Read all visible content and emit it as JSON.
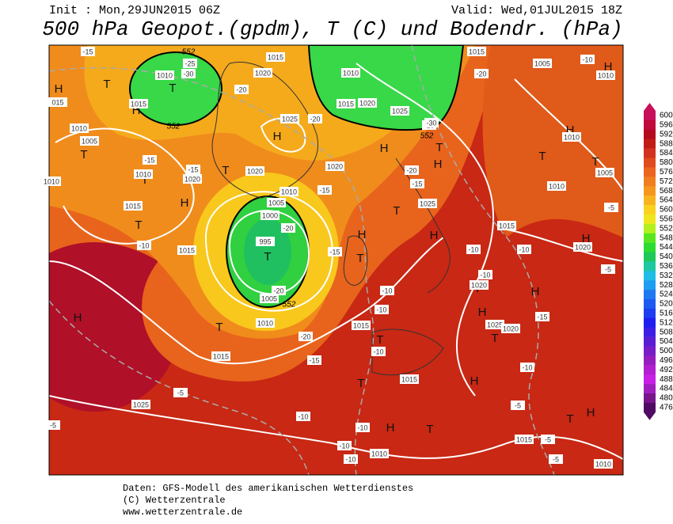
{
  "header": {
    "init": "Init : Mon,29JUN2015 06Z",
    "valid": "Valid: Wed,01JUL2015 18Z",
    "title": "500 hPa Geopot.(gpdm), T (C) und Bodendr. (hPa)"
  },
  "map": {
    "markers": [
      "T",
      "T",
      "H",
      "H",
      "H",
      "T",
      "T",
      "H",
      "H",
      "T",
      "T",
      "T",
      "H",
      "T",
      "H",
      "H",
      "H",
      "T",
      "T",
      "H",
      "T",
      "H",
      "T",
      "T",
      "H",
      "H",
      "T",
      "H",
      "T",
      "H",
      "T",
      "T",
      "H",
      "H",
      "T",
      "T"
    ],
    "isobar_labels": [
      "1010",
      "1015",
      "015",
      "1010",
      "1005",
      "1010",
      "1020",
      "1015",
      "1010",
      "1015",
      "1000",
      "995",
      "1005",
      "1010",
      "1015",
      "1025",
      "1015",
      "1010",
      "1015",
      "1020",
      "1025",
      "1020",
      "1015",
      "1025",
      "1020",
      "1020",
      "1010",
      "1005",
      "1025",
      "1015",
      "1005",
      "1010",
      "1010",
      "1005",
      "1010",
      "1020",
      "1020",
      "1025",
      "1020",
      "1015",
      "1010",
      "1015",
      "1010",
      "1015"
    ],
    "temperature_labels": [
      "-15",
      "-25",
      "-30",
      "-20",
      "-20",
      "-15",
      "-15",
      "-10",
      "-20",
      "-20",
      "-20",
      "-15",
      "-15",
      "-10",
      "-10",
      "-10",
      "-5",
      "-10",
      "-10",
      "-10",
      "-10",
      "-5",
      "-15",
      "-20",
      "-15",
      "-10",
      "-10",
      "-10",
      "-15",
      "-10",
      "-5",
      "-5",
      "-5",
      "-10",
      "-20",
      "-5",
      "-5",
      "-15",
      "-30"
    ],
    "geopotential_labels": [
      "552",
      "552",
      "552",
      "552"
    ]
  },
  "colorbar": {
    "labels": [
      "600",
      "596",
      "592",
      "588",
      "584",
      "580",
      "576",
      "572",
      "568",
      "564",
      "560",
      "556",
      "552",
      "548",
      "544",
      "540",
      "536",
      "532",
      "528",
      "524",
      "520",
      "516",
      "512",
      "508",
      "504",
      "500",
      "496",
      "492",
      "488",
      "484",
      "480",
      "476"
    ],
    "colors": [
      "#c80f5a",
      "#c00a3c",
      "#b40a1e",
      "#c01e14",
      "#d2321e",
      "#e04b1e",
      "#ec641e",
      "#f07d1e",
      "#f5961e",
      "#f8b41e",
      "#fad21e",
      "#f0e61e",
      "#b4f01e",
      "#5ae61e",
      "#2ddc32",
      "#1ec85a",
      "#1ec8a0",
      "#1ebee6",
      "#1e9ef0",
      "#1e78f0",
      "#1e5af0",
      "#1e3cf0",
      "#1e1ef0",
      "#3c1ee6",
      "#5a1ed2",
      "#781ec8",
      "#961ebe",
      "#b41ed2",
      "#c81ee6",
      "#a01ebe",
      "#78148c",
      "#500a64"
    ]
  },
  "footer": {
    "source": "Daten: GFS-Modell des amerikanischen Wetterdienstes",
    "copyright": "(C) Wetterzentrale",
    "url": "www.wetterzentrale.de"
  }
}
